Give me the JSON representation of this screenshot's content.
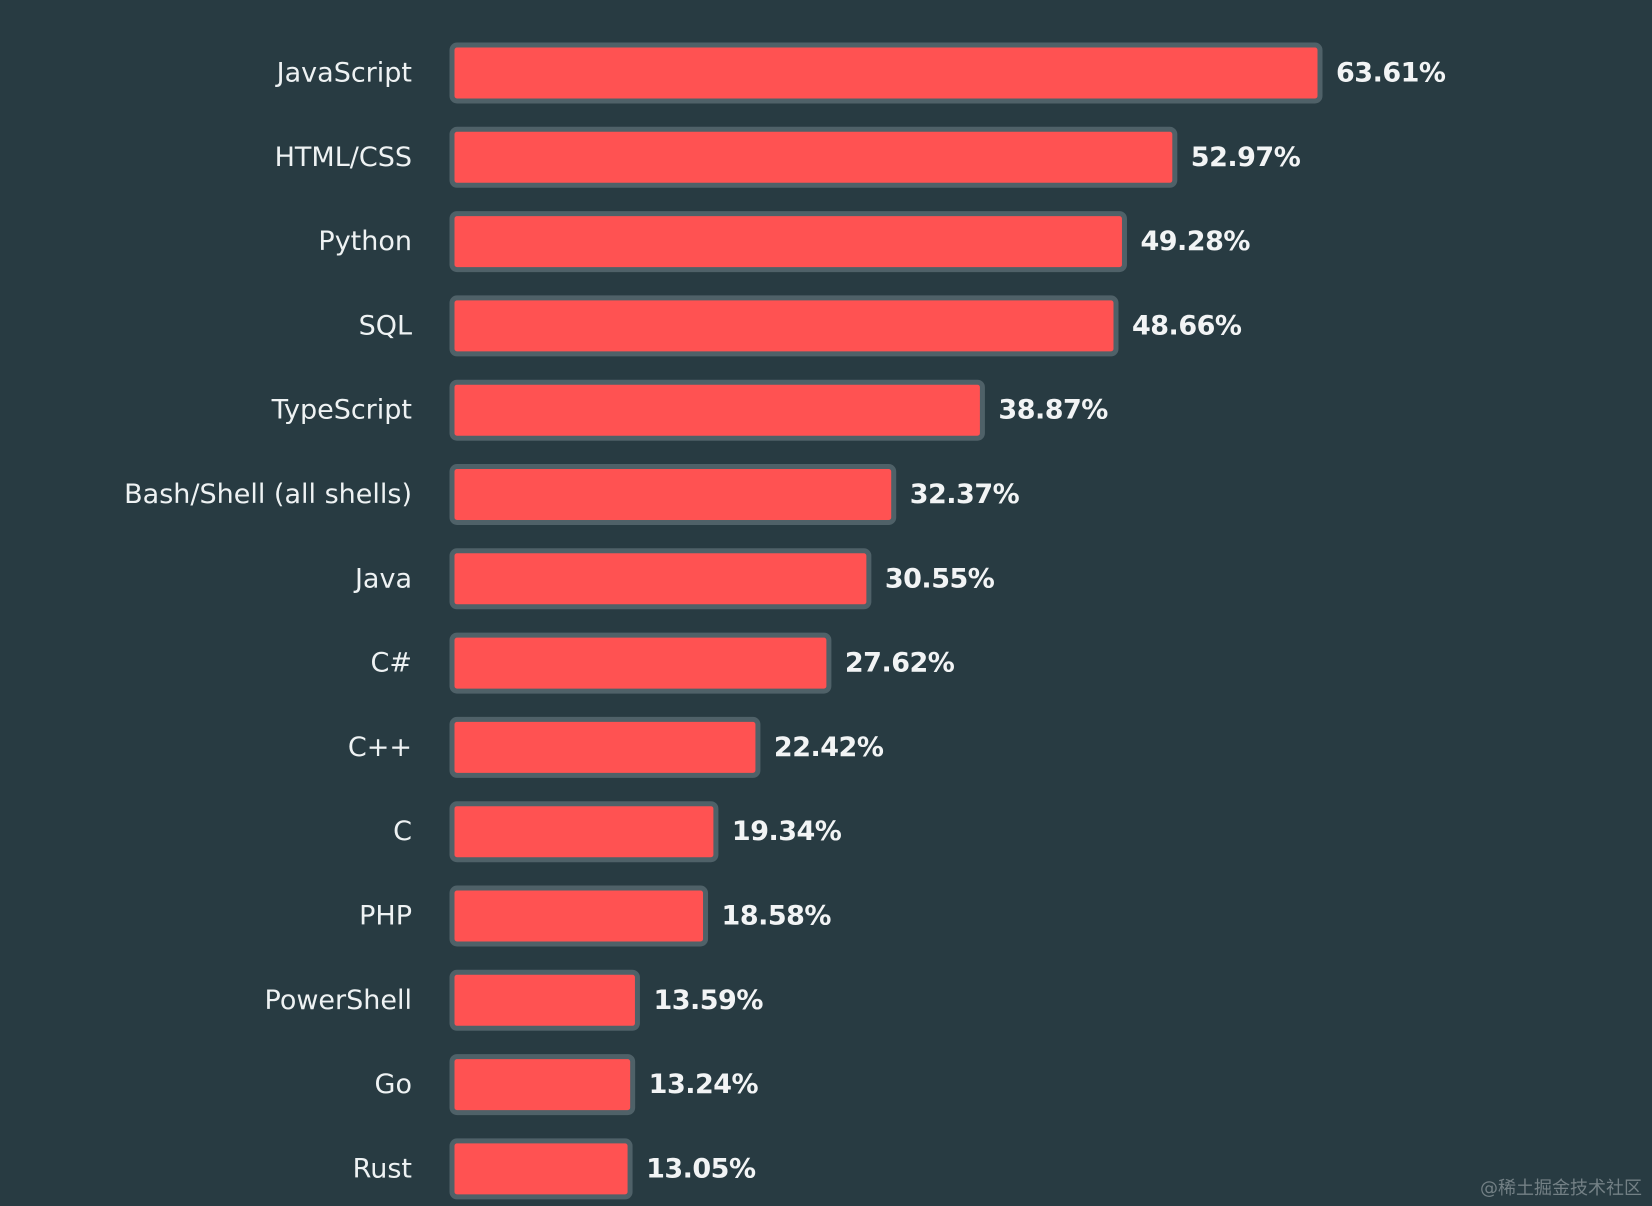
{
  "chart_data": {
    "type": "bar",
    "orientation": "horizontal",
    "categories": [
      "JavaScript",
      "HTML/CSS",
      "Python",
      "SQL",
      "TypeScript",
      "Bash/Shell (all shells)",
      "Java",
      "C#",
      "C++",
      "C",
      "PHP",
      "PowerShell",
      "Go",
      "Rust"
    ],
    "values": [
      63.61,
      52.97,
      49.28,
      48.66,
      38.87,
      32.37,
      30.55,
      27.62,
      22.42,
      19.34,
      18.58,
      13.59,
      13.24,
      13.05
    ],
    "value_labels": [
      "63.61%",
      "52.97%",
      "49.28%",
      "48.66%",
      "38.87%",
      "32.37%",
      "30.55%",
      "27.62%",
      "22.42%",
      "19.34%",
      "18.58%",
      "13.59%",
      "13.24%",
      "13.05%"
    ],
    "unit": "%",
    "xlim": [
      0,
      63.61
    ],
    "grid": false,
    "title": "",
    "xlabel": "",
    "ylabel": ""
  },
  "colors": {
    "background": "#283b42",
    "bar_fill": "#ff5252",
    "bar_border": "#4f6168",
    "text": "#eef2f3"
  },
  "watermark": "@稀土掘金技术社区"
}
